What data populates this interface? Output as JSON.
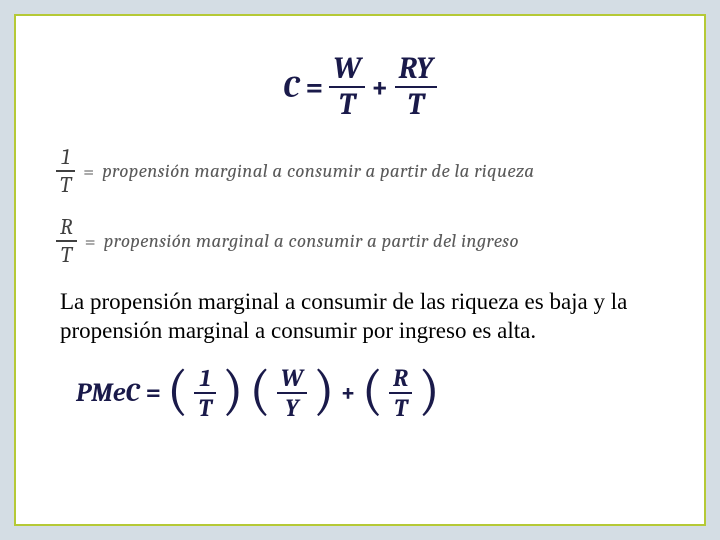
{
  "colors": {
    "page_bg": "#d4dde4",
    "frame_bg": "#ffffff",
    "frame_border": "#b5c936",
    "formula_color": "#1a1a4a",
    "def_text_color": "#5a5a5a",
    "def_frac_color": "#404040",
    "para_color": "#000000"
  },
  "main_equation": {
    "lhs": "C",
    "eq": "=",
    "term1": {
      "num": "W",
      "den": "T"
    },
    "plus": "+",
    "term2": {
      "num": "RY",
      "den": "T"
    }
  },
  "definitions": [
    {
      "frac": {
        "num": "1",
        "den": "T"
      },
      "eq": "=",
      "text": "propensión marginal a consumir a partir de la riqueza"
    },
    {
      "frac": {
        "num": "R",
        "den": "T"
      },
      "eq": "=",
      "text": "propensión marginal a consumir a partir del ingreso"
    }
  ],
  "paragraph": "La propensión marginal a consumir de las  riqueza es baja y la propensión marginal a consumir por ingreso es alta.",
  "pmec": {
    "lhs": "PMeC",
    "eq": "=",
    "group1": {
      "num": "1",
      "den": "T"
    },
    "group2": {
      "num": "W",
      "den": "Y"
    },
    "plus": "+",
    "group3": {
      "num": "R",
      "den": "T"
    }
  },
  "fonts": {
    "main_eq_size": 30,
    "def_text_size": 19,
    "para_size": 23,
    "pmec_size": 26
  }
}
